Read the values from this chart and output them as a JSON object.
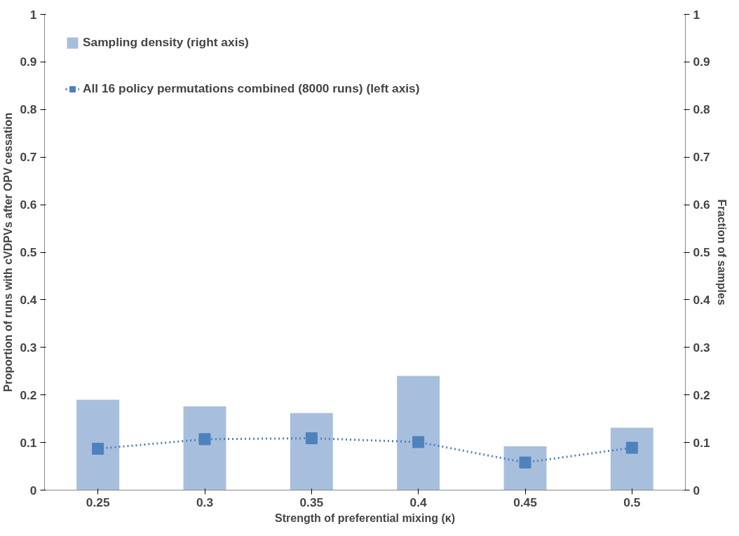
{
  "chart_data": {
    "type": "bar",
    "xlabel": "Strength of preferential mixing (κ)",
    "ylabel": "Proportion of runs with cVDPVs after OPV cessation",
    "y2label": "Fraction of samples",
    "categories": [
      "0.25",
      "0.3",
      "0.35",
      "0.4",
      "0.45",
      "0.5"
    ],
    "series": [
      {
        "name": "Sampling density (right axis)",
        "axis": "y2",
        "color": "#a7bfdd",
        "values": [
          0.19,
          0.176,
          0.162,
          0.24,
          0.092,
          0.131
        ]
      },
      {
        "name": "All 16 policy permutations combined (8000 runs) (left axis)",
        "type": "line",
        "color": "#4f81bd",
        "marker": "square",
        "line_style": "dotted",
        "values": [
          0.087,
          0.107,
          0.109,
          0.101,
          0.058,
          0.089
        ]
      }
    ],
    "ylim": [
      0,
      1
    ],
    "yticks": [
      0,
      0.1,
      0.2,
      0.3,
      0.4,
      0.5,
      0.6,
      0.7,
      0.8,
      0.9,
      1
    ],
    "y2lim": [
      0,
      1
    ],
    "y2ticks": [
      0,
      0.1,
      0.2,
      0.3,
      0.4,
      0.5,
      0.6,
      0.7,
      0.8,
      0.9,
      1
    ],
    "grid": false,
    "legend": "top left"
  }
}
